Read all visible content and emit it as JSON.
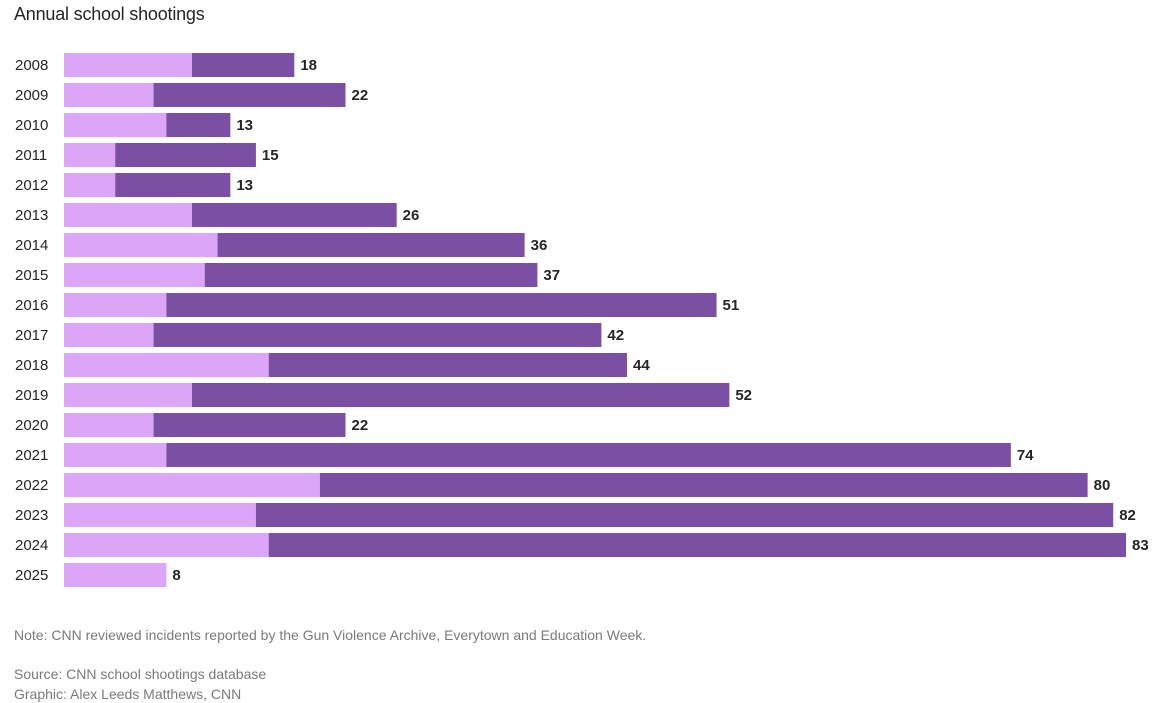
{
  "chart_data": {
    "type": "bar",
    "orientation": "horizontal",
    "stacked": true,
    "title": "Annual school shootings",
    "categories": [
      "2008",
      "2009",
      "2010",
      "2011",
      "2012",
      "2013",
      "2014",
      "2015",
      "2016",
      "2017",
      "2018",
      "2019",
      "2020",
      "2021",
      "2022",
      "2023",
      "2024",
      "2025"
    ],
    "series": [
      {
        "color": "#dba6f7",
        "values": [
          10,
          7,
          8,
          4,
          4,
          10,
          12,
          11,
          8,
          7,
          16,
          10,
          7,
          8,
          20,
          15,
          16,
          8
        ]
      },
      {
        "color": "#7b4fa3",
        "values": [
          8,
          15,
          5,
          11,
          9,
          16,
          24,
          26,
          43,
          35,
          28,
          42,
          15,
          66,
          60,
          67,
          67,
          0
        ]
      }
    ],
    "totals": [
      18,
      22,
      13,
      15,
      13,
      26,
      36,
      37,
      51,
      42,
      44,
      52,
      22,
      74,
      80,
      82,
      83,
      8
    ],
    "xlim": [
      0,
      83
    ],
    "grid": false,
    "legend": "none"
  },
  "footer": {
    "note": "Note: CNN reviewed incidents reported by the Gun Violence Archive, Everytown and Education Week.",
    "source": "Source: CNN school shootings database",
    "credit": "Graphic: Alex Leeds Matthews, CNN"
  }
}
